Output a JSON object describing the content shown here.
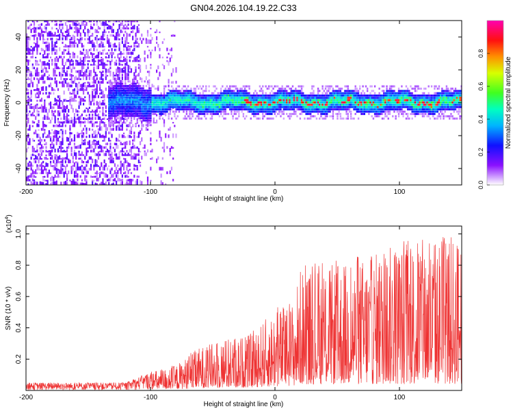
{
  "title": "GN04.2026.104.19.22.C33",
  "chart_data": [
    {
      "type": "heatmap",
      "title": "GN04.2026.104.19.22.C33",
      "xlabel": "Height of straight line (km)",
      "ylabel": "Frequency (Hz)",
      "xlim": [
        -200,
        150
      ],
      "ylim": [
        -50,
        50
      ],
      "x_ticks": [
        -200,
        -100,
        0,
        100
      ],
      "x_tick_labels": [
        "-200",
        "-100",
        "0",
        "100"
      ],
      "y_ticks": [
        -40,
        -20,
        0,
        20,
        40
      ],
      "y_tick_labels": [
        "-40",
        "-20",
        "0",
        "20",
        "40"
      ],
      "noise_region_km": [
        -200,
        -80
      ],
      "band_center_hz": 0,
      "band_halfwidth_hz": 6,
      "peak_region_km": [
        -30,
        150
      ],
      "colorbar": {
        "label": "Normalized spectral amplitude",
        "range": [
          0,
          1
        ],
        "ticks": [
          0.0,
          0.2,
          0.4,
          0.6,
          0.8
        ],
        "tick_labels": [
          "0.0",
          "0.2",
          "0.4",
          "0.6",
          "0.8"
        ],
        "colormap": [
          "#ffffff",
          "#c890ff",
          "#7a00ff",
          "#0000ff",
          "#00c8ff",
          "#00ff80",
          "#a0ff00",
          "#ffff00",
          "#ff8000",
          "#ff0000",
          "#ff00a0"
        ]
      }
    },
    {
      "type": "line",
      "title": "",
      "xlabel": "Height of straight line (km)",
      "ylabel": "SNR (10 * v/v)",
      "scale_label": "(x10",
      "scale_exponent": "4",
      "xlim": [
        -200,
        150
      ],
      "ylim": [
        0,
        1.05
      ],
      "x_ticks": [
        -200,
        -100,
        0,
        100
      ],
      "x_tick_labels": [
        "-200",
        "-100",
        "0",
        "100"
      ],
      "y_ticks": [
        0.2,
        0.4,
        0.6,
        0.8,
        1.0
      ],
      "y_tick_labels": [
        "0.2",
        "0.4",
        "0.6",
        "0.8",
        "1.0"
      ],
      "color": "#ee3333",
      "envelope": [
        {
          "x": -200,
          "upper": 0.05
        },
        {
          "x": -120,
          "upper": 0.05
        },
        {
          "x": -100,
          "upper": 0.12
        },
        {
          "x": -80,
          "upper": 0.16
        },
        {
          "x": -60,
          "upper": 0.28
        },
        {
          "x": -40,
          "upper": 0.33
        },
        {
          "x": -20,
          "upper": 0.36
        },
        {
          "x": 0,
          "upper": 0.52
        },
        {
          "x": 15,
          "upper": 0.58
        },
        {
          "x": 20,
          "upper": 0.78
        },
        {
          "x": 60,
          "upper": 0.82
        },
        {
          "x": 100,
          "upper": 0.95
        },
        {
          "x": 150,
          "upper": 1.0
        }
      ]
    }
  ]
}
